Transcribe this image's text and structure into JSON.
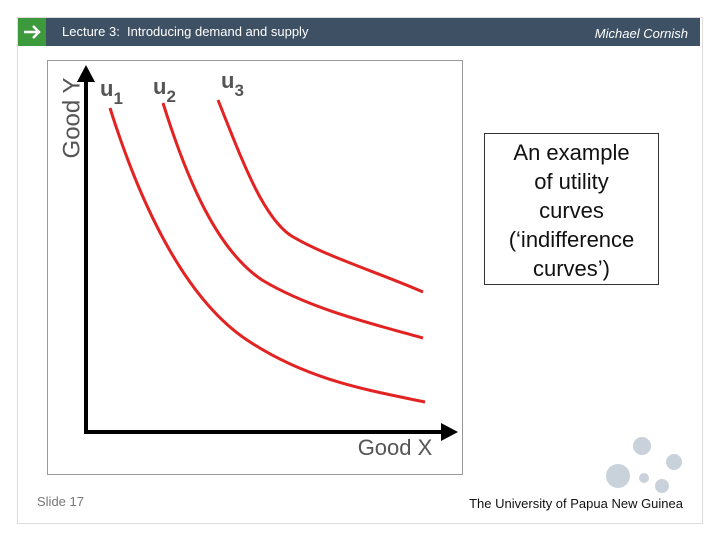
{
  "header": {
    "title": "Lecture 3:  Introducing demand and supply",
    "author": "Michael Cornish"
  },
  "figure": {
    "y_axis_label": "Good Y",
    "x_axis_label": "Good X",
    "curves": [
      {
        "letter": "u",
        "subscript": "1"
      },
      {
        "letter": "u",
        "subscript": "2"
      },
      {
        "letter": "u",
        "subscript": "3"
      }
    ]
  },
  "caption": {
    "lines": [
      "An example",
      "of utility",
      "curves",
      "(‘indifference",
      "curves’)"
    ]
  },
  "footer": {
    "slide": "Slide 17",
    "institution": "The University of Papua New Guinea"
  }
}
